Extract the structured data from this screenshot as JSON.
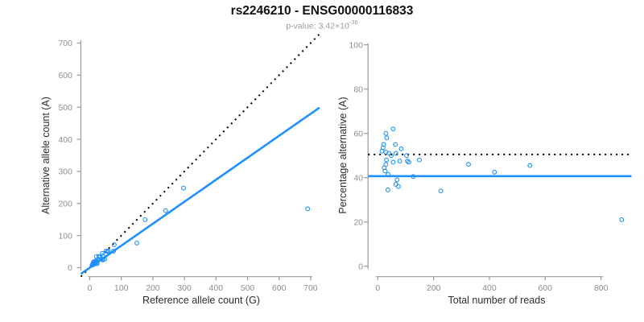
{
  "header": {
    "title": "rs2246210 - ENSG00000116833",
    "subtitle_base": "p-value: 3.42×10",
    "subtitle_exponent": "-36"
  },
  "colors": {
    "accent": "#1E90FF",
    "reference_black": "#000000",
    "axis": "#9a9a9a",
    "tick_label": "#8e8e8e",
    "axis_title": "#2e2e2e",
    "background": "#ffffff"
  },
  "chart_data": [
    {
      "type": "scatter",
      "xlabel": "Reference allele count (G)",
      "ylabel": "Alternative allele count (A)",
      "xlim": [
        0,
        700
      ],
      "ylim": [
        0,
        700
      ],
      "xticks": [
        0,
        100,
        200,
        300,
        400,
        500,
        600,
        700
      ],
      "yticks": [
        0,
        100,
        200,
        300,
        400,
        500,
        600,
        700
      ],
      "grid": false,
      "legend": "none",
      "marker": "open-circle",
      "lines": [
        {
          "name": "identity-line",
          "kind": "abline",
          "slope": 1,
          "intercept": 0,
          "style": "dotted",
          "color": "#000000"
        },
        {
          "name": "fit-line",
          "kind": "abline",
          "slope": 0.685,
          "intercept": 0,
          "style": "solid",
          "color": "#1E90FF"
        }
      ],
      "points": [
        [
          20.9,
          34.1
        ],
        [
          11.6,
          17.4
        ],
        [
          13.4,
          18.6
        ],
        [
          9.5,
          11.6
        ],
        [
          28.4,
          34.7
        ],
        [
          8.8,
          10.2
        ],
        [
          39.5,
          44.5
        ],
        [
          7.2,
          7.8
        ],
        [
          14.1,
          14.9
        ],
        [
          19.6,
          20.4
        ],
        [
          31.9,
          33.2
        ],
        [
          24,
          24
        ],
        [
          51.5,
          51.5
        ],
        [
          16.1,
          14.9
        ],
        [
          41.5,
          37.5
        ],
        [
          55.7,
          50.4
        ],
        [
          58.8,
          52.2
        ],
        [
          77.5,
          71.5
        ],
        [
          29.2,
          25.9
        ],
        [
          15.7,
          13.3
        ],
        [
          175.5,
          149.5
        ],
        [
          297,
          248
        ],
        [
          12.8,
          10.2
        ],
        [
          14.8,
          11.2
        ],
        [
          240.4,
          177.7
        ],
        [
          21.6,
          15.4
        ],
        [
          75.6,
          51.4
        ],
        [
          42.1,
          26.9
        ],
        [
          41,
          24.1
        ],
        [
          47.4,
          26.6
        ],
        [
          23.6,
          12.4
        ],
        [
          149.2,
          76.8
        ],
        [
          690.5,
          183.5
        ]
      ]
    },
    {
      "type": "scatter",
      "xlabel": "Total number of reads",
      "ylabel": "Percentage alternative (A)",
      "xlim": [
        0,
        900
      ],
      "ylim": [
        0,
        100
      ],
      "xticks": [
        0,
        200,
        400,
        600,
        800
      ],
      "yticks": [
        0,
        20,
        40,
        60,
        80,
        100
      ],
      "grid": false,
      "legend": "none",
      "marker": "open-circle",
      "lines": [
        {
          "name": "reference-line",
          "kind": "hline",
          "y": 50.5,
          "style": "dotted",
          "color": "#000000"
        },
        {
          "name": "mean-line",
          "kind": "hline",
          "y": 40.7,
          "style": "solid",
          "color": "#1E90FF"
        }
      ],
      "points": [
        [
          55,
          62
        ],
        [
          29,
          60
        ],
        [
          32,
          58
        ],
        [
          21,
          55
        ],
        [
          63,
          55
        ],
        [
          19,
          53.5
        ],
        [
          84,
          53
        ],
        [
          15,
          52
        ],
        [
          29,
          51.5
        ],
        [
          40,
          51
        ],
        [
          65,
          51
        ],
        [
          48,
          50
        ],
        [
          103,
          50
        ],
        [
          31,
          48
        ],
        [
          79,
          47.5
        ],
        [
          106,
          47.5
        ],
        [
          111,
          47
        ],
        [
          149,
          48
        ],
        [
          55,
          47
        ],
        [
          29,
          46
        ],
        [
          325,
          46
        ],
        [
          545,
          45.5
        ],
        [
          23,
          44.5
        ],
        [
          26,
          43
        ],
        [
          418,
          42.5
        ],
        [
          37,
          41.5
        ],
        [
          127,
          40.5
        ],
        [
          69,
          39
        ],
        [
          65,
          37
        ],
        [
          74,
          36
        ],
        [
          36,
          34.5
        ],
        [
          226,
          34
        ],
        [
          874,
          21
        ]
      ]
    }
  ]
}
